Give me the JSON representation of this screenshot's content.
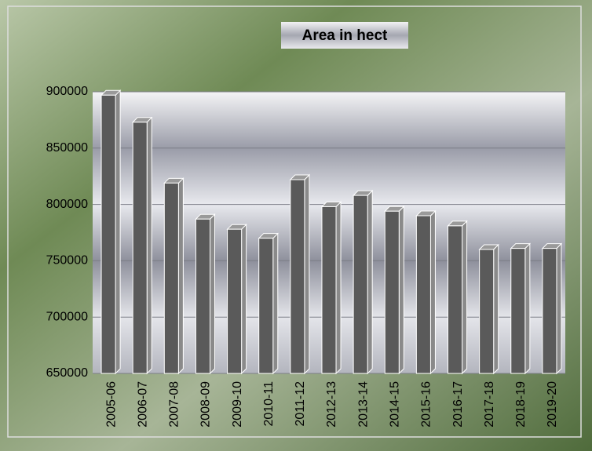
{
  "chart_data": {
    "type": "bar",
    "title": "Area in hect",
    "categories": [
      "2005-06",
      "2006-07",
      "2007-08",
      "2008-09",
      "2009-10",
      "2010-11",
      "2011-12",
      "2012-13",
      "2013-14",
      "2014-15",
      "2015-16",
      "2016-17",
      "2017-18",
      "2018-19",
      "2019-20"
    ],
    "values": [
      897000,
      873000,
      819000,
      787000,
      778000,
      770000,
      822000,
      798000,
      808000,
      794000,
      790000,
      781000,
      760000,
      761000,
      761000
    ],
    "color": "#5a5a5a",
    "ylim": [
      650000,
      900000
    ],
    "yticks": [
      650000,
      700000,
      750000,
      800000,
      850000,
      900000
    ],
    "grid": true
  }
}
